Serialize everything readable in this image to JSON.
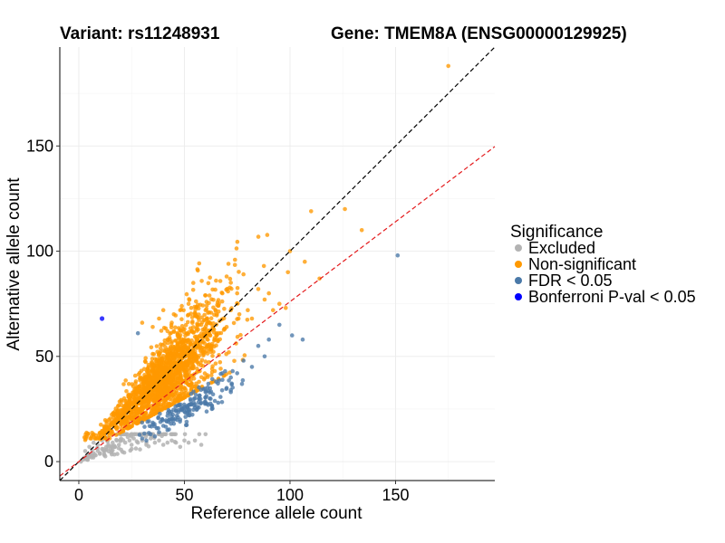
{
  "chart_data": {
    "type": "scatter",
    "title_left": "Variant: rs11248931",
    "title_right": "Gene: TMEM8A (ENSG00000129925)",
    "xlabel": "Reference allele count",
    "ylabel": "Alternative allele count",
    "xlim": [
      -9,
      197
    ],
    "ylim": [
      -9,
      197
    ],
    "x_ticks": [
      0,
      50,
      100,
      150
    ],
    "y_ticks": [
      0,
      50,
      100,
      150
    ],
    "grid": true,
    "reference_lines": [
      {
        "name": "identity",
        "slope": 1.0,
        "intercept": 0,
        "color": "#000000",
        "style": "dashed"
      },
      {
        "name": "fitted",
        "slope": 0.76,
        "intercept": 0,
        "color": "#e41a1c",
        "style": "dashed"
      }
    ],
    "legend": {
      "title": "Significance",
      "position": "right",
      "entries": [
        {
          "label": "Excluded",
          "color": "#b3b3b3"
        },
        {
          "label": "Non-significant",
          "color": "#ff9900"
        },
        {
          "label": "FDR < 0.05",
          "color": "#4a79a8"
        },
        {
          "label": "Bonferroni P-val < 0.05",
          "color": "#0000ff"
        }
      ]
    },
    "series": [
      {
        "name": "Non-significant",
        "color": "#ff9900",
        "points": [
          [
            175,
            188
          ],
          [
            126,
            120
          ],
          [
            110,
            119
          ],
          [
            134,
            110
          ],
          [
            107,
            95
          ],
          [
            114,
            87
          ],
          [
            100,
            100
          ],
          [
            99,
            90
          ],
          [
            78,
            89
          ],
          [
            70,
            88
          ],
          [
            65,
            86
          ],
          [
            72,
            85
          ],
          [
            75,
            80
          ],
          [
            68,
            80
          ],
          [
            60,
            79
          ],
          [
            85,
            82
          ],
          [
            90,
            80
          ],
          [
            88,
            77
          ],
          [
            95,
            75
          ],
          [
            92,
            72
          ],
          [
            98,
            73
          ],
          [
            80,
            72
          ],
          [
            82,
            68
          ],
          [
            76,
            70
          ],
          [
            72,
            72
          ],
          [
            66,
            74
          ],
          [
            60,
            72
          ],
          [
            55,
            70
          ],
          [
            48,
            72
          ],
          [
            52,
            75
          ],
          [
            45,
            70
          ],
          [
            40,
            72
          ],
          [
            38,
            68
          ],
          [
            44,
            66
          ],
          [
            35,
            64
          ],
          [
            30,
            66
          ],
          [
            58,
            65
          ],
          [
            62,
            62
          ],
          [
            70,
            64
          ],
          [
            50,
            63
          ],
          [
            42,
            62
          ]
        ],
        "generated_cloud": {
          "count": 1800,
          "x_center": 40,
          "x_spread": 14,
          "ratio": 0.9,
          "ratio_spread": 0.22
        }
      },
      {
        "name": "FDR < 0.05",
        "color": "#4a79a8",
        "points": [
          [
            151,
            98
          ],
          [
            106,
            58
          ],
          [
            101,
            60
          ],
          [
            28,
            61
          ],
          [
            95,
            65
          ],
          [
            90,
            58
          ],
          [
            85,
            55
          ],
          [
            82,
            45
          ],
          [
            78,
            48
          ],
          [
            75,
            42
          ],
          [
            72,
            40
          ],
          [
            88,
            50
          ],
          [
            70,
            35
          ],
          [
            68,
            42
          ],
          [
            65,
            38
          ],
          [
            62,
            30
          ],
          [
            60,
            33
          ],
          [
            58,
            28
          ],
          [
            56,
            25
          ],
          [
            55,
            30
          ],
          [
            52,
            22
          ],
          [
            50,
            26
          ],
          [
            48,
            20
          ],
          [
            46,
            24
          ],
          [
            45,
            18
          ],
          [
            43,
            20
          ],
          [
            42,
            15
          ],
          [
            40,
            17
          ],
          [
            38,
            14
          ],
          [
            36,
            12
          ],
          [
            34,
            13
          ],
          [
            32,
            10
          ],
          [
            30,
            11
          ],
          [
            63,
            25
          ],
          [
            66,
            28
          ],
          [
            72,
            33
          ]
        ],
        "generated_cloud": {
          "count": 150,
          "x_center": 52,
          "x_spread": 11,
          "ratio": 0.5,
          "ratio_spread": 0.06
        }
      },
      {
        "name": "Excluded",
        "color": "#b3b3b3",
        "points": [
          [
            1,
            0
          ],
          [
            2,
            1
          ],
          [
            3,
            2
          ],
          [
            4,
            1
          ],
          [
            5,
            3
          ],
          [
            6,
            2
          ],
          [
            7,
            4
          ],
          [
            8,
            3
          ],
          [
            9,
            5
          ],
          [
            10,
            4
          ],
          [
            11,
            6
          ],
          [
            12,
            5
          ],
          [
            13,
            7
          ],
          [
            14,
            8
          ],
          [
            15,
            6
          ],
          [
            16,
            9
          ],
          [
            17,
            7
          ],
          [
            18,
            10
          ],
          [
            19,
            8
          ],
          [
            20,
            11
          ],
          [
            22,
            9
          ],
          [
            24,
            10
          ],
          [
            25,
            8
          ],
          [
            26,
            11
          ],
          [
            28,
            9
          ],
          [
            30,
            10
          ],
          [
            32,
            8
          ],
          [
            34,
            11
          ],
          [
            36,
            9
          ],
          [
            38,
            10
          ],
          [
            40,
            8
          ],
          [
            42,
            9
          ],
          [
            44,
            10
          ],
          [
            46,
            9
          ],
          [
            48,
            7
          ],
          [
            50,
            10
          ],
          [
            52,
            9
          ],
          [
            55,
            10
          ],
          [
            58,
            8
          ],
          [
            3,
            5
          ],
          [
            5,
            7
          ],
          [
            7,
            9
          ],
          [
            9,
            8
          ],
          [
            11,
            10
          ],
          [
            13,
            11
          ],
          [
            20,
            13
          ],
          [
            25,
            12
          ],
          [
            30,
            13
          ],
          [
            35,
            12
          ]
        ],
        "generated_cloud": {
          "count": 110,
          "x_center": 24,
          "x_spread": 14,
          "ratio": 0.5,
          "ratio_spread": 0.18
        }
      },
      {
        "name": "Bonferroni P-val < 0.05",
        "color": "#0000ff",
        "points": [
          [
            11,
            68
          ]
        ]
      }
    ]
  }
}
